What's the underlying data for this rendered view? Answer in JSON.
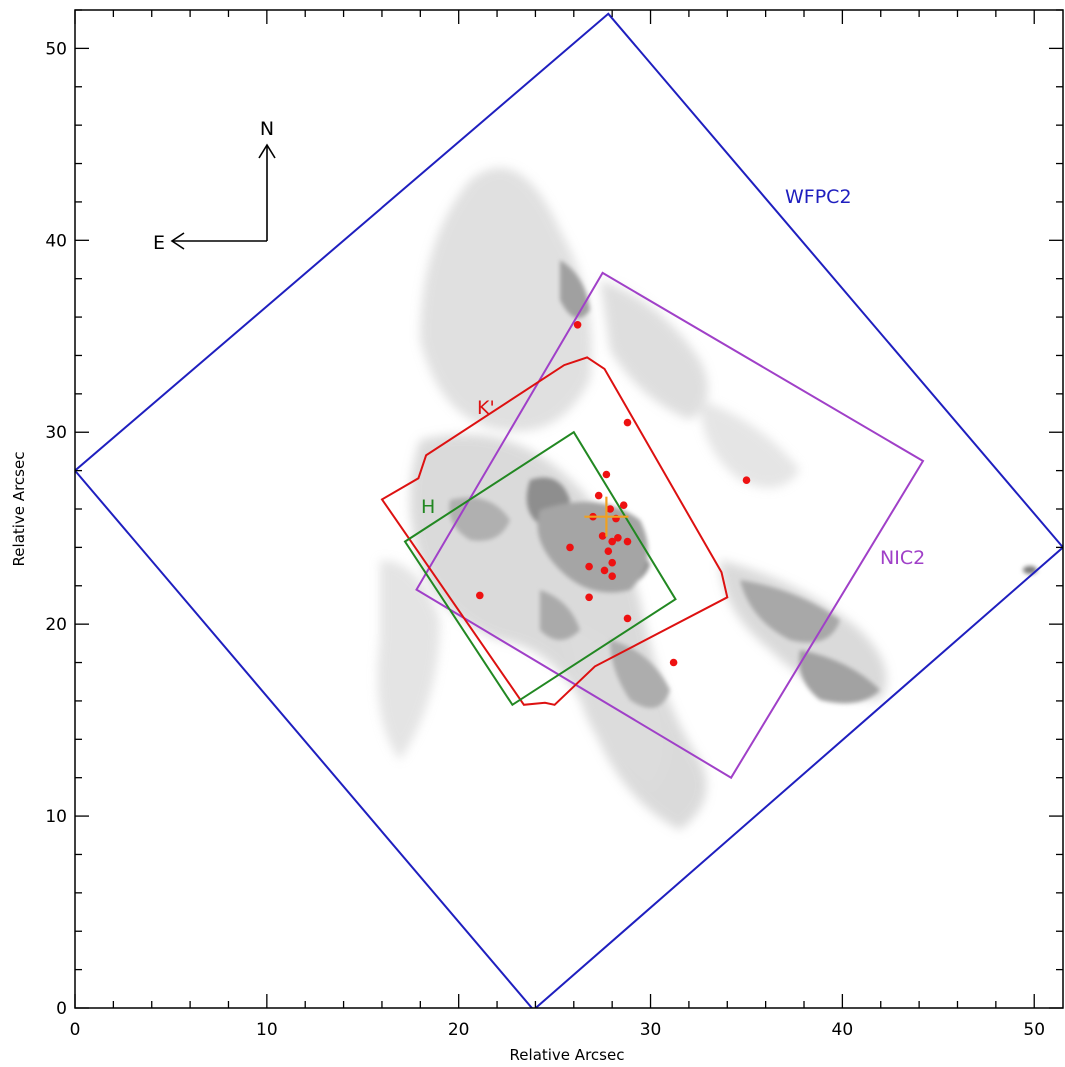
{
  "chart_data": {
    "type": "scatter",
    "title": "",
    "xlabel": "Relative Arcsec",
    "ylabel": "Relative Arcsec",
    "xlim": [
      0,
      51.5
    ],
    "ylim": [
      0,
      52
    ],
    "x_ticks": [
      0,
      10,
      20,
      30,
      40,
      50
    ],
    "y_ticks": [
      0,
      10,
      20,
      30,
      40,
      50
    ],
    "x_tick_labels": [
      "0",
      "10",
      "20",
      "30",
      "40",
      "50"
    ],
    "y_tick_labels": [
      "0",
      "10",
      "20",
      "30",
      "40",
      "50"
    ],
    "grid": false,
    "compass": {
      "north_label": "N",
      "east_label": "E"
    },
    "footprints": [
      {
        "label": "WFPC2",
        "color": "#1f1fbf",
        "vertices": [
          [
            27.8,
            51.8
          ],
          [
            51.5,
            24.0
          ],
          [
            23.9,
            -0.1
          ],
          [
            0.0,
            28.0
          ]
        ]
      },
      {
        "label": "NIC2",
        "color": "#a040c8",
        "vertices": [
          [
            27.5,
            38.3
          ],
          [
            44.2,
            28.5
          ],
          [
            34.2,
            12.0
          ],
          [
            17.8,
            21.8
          ]
        ]
      },
      {
        "label": "K'",
        "color": "#dd1111",
        "vertices": [
          [
            26.7,
            33.9
          ],
          [
            27.6,
            33.3
          ],
          [
            33.7,
            22.7
          ],
          [
            34.0,
            21.4
          ],
          [
            27.1,
            17.8
          ],
          [
            25.0,
            15.8
          ],
          [
            24.5,
            15.9
          ],
          [
            23.4,
            15.8
          ],
          [
            16.0,
            26.5
          ],
          [
            17.9,
            27.6
          ],
          [
            18.3,
            28.8
          ],
          [
            25.5,
            33.5
          ]
        ]
      },
      {
        "label": "H",
        "color": "#228822",
        "vertices": [
          [
            26.0,
            30.0
          ],
          [
            31.3,
            21.3
          ],
          [
            22.8,
            15.8
          ],
          [
            17.2,
            24.3
          ]
        ]
      }
    ],
    "points": {
      "color": "#ee1111",
      "x": [
        26.2,
        28.8,
        35.0,
        27.7,
        27.3,
        28.6,
        27.9,
        28.2,
        27.5,
        28.0,
        25.8,
        27.8,
        28.3,
        28.8,
        26.8,
        28.0,
        27.6,
        28.0,
        26.8,
        21.1,
        28.8,
        31.2,
        27.0
      ],
      "y": [
        35.6,
        30.5,
        27.5,
        27.8,
        26.7,
        26.2,
        26.0,
        25.5,
        24.6,
        24.3,
        24.0,
        23.8,
        24.5,
        24.3,
        23.0,
        23.2,
        22.8,
        22.5,
        21.4,
        21.5,
        20.3,
        18.0,
        25.6
      ]
    },
    "marker": {
      "type": "cross",
      "color": "#f0a020",
      "x": 27.7,
      "y": 25.6
    },
    "background_image": "greyscale emission map"
  }
}
